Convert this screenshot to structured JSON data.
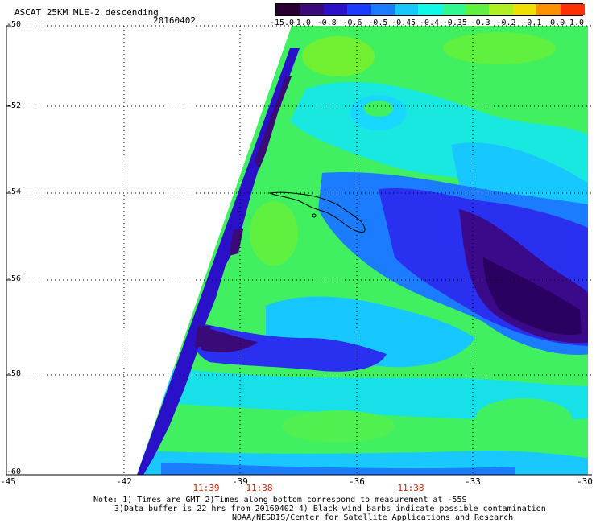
{
  "header": {
    "title": "ASCAT 25KM MLE-2 descending",
    "date": "20160402"
  },
  "colorbar": {
    "labels": [
      "-15.0",
      "-1.0",
      "-0.8",
      "-0.6",
      "-0.5",
      "-0.45",
      "-0.4",
      "-0.35",
      "-0.3",
      "-0.2",
      "-0.1",
      "0.0",
      "1.0"
    ],
    "colors": [
      "#2a0030",
      "#3a0a78",
      "#2a10c8",
      "#1a3cff",
      "#1c7cff",
      "#16c8ff",
      "#10f8e8",
      "#30f890",
      "#60f040",
      "#b0f020",
      "#f0e000",
      "#ff9000",
      "#ff3000"
    ]
  },
  "axes": {
    "lat_labels": [
      "-50",
      "-52",
      "-54",
      "-56",
      "-58",
      "-60"
    ],
    "lon_labels": [
      "-45",
      "-42",
      "-39",
      "-36",
      "-33",
      "-30"
    ],
    "time_labels": [
      "11:39",
      "11:38",
      "11:38"
    ]
  },
  "notes": {
    "line1": "Note: 1) Times are GMT 2)Times along bottom correspond to measurement at -55S",
    "line2": "3)Data buffer is 22 hrs from 20160402 4) Black wind barbs indicate possible contamination",
    "line3": "NOAA/NESDIS/Center for Satellite Applications and Research"
  },
  "palette": {
    "dark_purple": "#3a0a78",
    "blue": "#2a10c8",
    "mid_blue": "#1a3cff",
    "cyan": "#16e0ff",
    "green": "#40f060",
    "bright_green": "#70f030",
    "red_time": "#cc2200"
  }
}
